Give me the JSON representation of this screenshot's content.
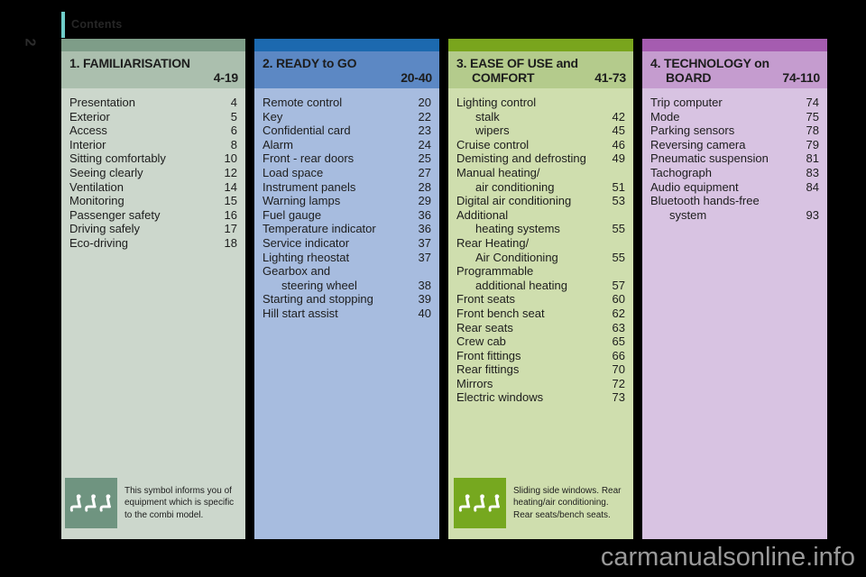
{
  "page": {
    "contents_label": "Contents",
    "page_number": "2",
    "watermark": "carmanualsonline.info"
  },
  "colors": {
    "background": "#000000",
    "contents_bar": "#6fcdc9",
    "watermark_text": "#9a9a9a",
    "col1_accent": "#7e9d88",
    "col1_header": "#abbfae",
    "col1_body": "#ccd7cc",
    "col1_icon": "#6f9480",
    "col2_accent": "#1c69af",
    "col2_header": "#5c88c4",
    "col2_body": "#a7bcdf",
    "col3_accent": "#79a51d",
    "col3_header": "#b4cb8c",
    "col3_body": "#cfdeae",
    "col3_icon": "#76a81f",
    "col4_accent": "#a55cb0",
    "col4_header": "#c59ccf",
    "col4_body": "#d8c3e2"
  },
  "columns": [
    {
      "title_line1": "1. FAMILIARISATION",
      "title_line2": "",
      "page_range": "4-19",
      "rows": [
        {
          "label": "Presentation",
          "page": "4"
        },
        {
          "label": "Exterior",
          "page": "5"
        },
        {
          "label": "Access",
          "page": "6"
        },
        {
          "label": "Interior",
          "page": "8"
        },
        {
          "label": "Sitting comfortably",
          "page": "10"
        },
        {
          "label": "Seeing clearly",
          "page": "12"
        },
        {
          "label": "Ventilation",
          "page": "14"
        },
        {
          "label": "Monitoring",
          "page": "15"
        },
        {
          "label": "Passenger safety",
          "page": "16"
        },
        {
          "label": "Driving safely",
          "page": "17"
        },
        {
          "label": "Eco-driving",
          "page": "18"
        }
      ],
      "note": {
        "icon": "combi-seats-icon",
        "text": "This symbol informs you of equipment which is specific to the combi model."
      }
    },
    {
      "title_line1": "2. READY to GO",
      "title_line2": "",
      "page_range": "20-40",
      "rows": [
        {
          "label": "Remote control",
          "page": "20"
        },
        {
          "label": "Key",
          "page": "22"
        },
        {
          "label": "Confidential card",
          "page": "23"
        },
        {
          "label": "Alarm",
          "page": "24"
        },
        {
          "label": "Front - rear doors",
          "page": "25"
        },
        {
          "label": "Load space",
          "page": "27"
        },
        {
          "label": "Instrument panels",
          "page": "28"
        },
        {
          "label": "Warning lamps",
          "page": "29"
        },
        {
          "label": "Fuel gauge",
          "page": "36"
        },
        {
          "label": "Temperature indicator",
          "page": "36"
        },
        {
          "label": "Service indicator",
          "page": "37"
        },
        {
          "label": "Lighting rheostat",
          "page": "37"
        },
        {
          "label": "Gearbox and",
          "page": ""
        },
        {
          "label": "steering wheel",
          "page": "38",
          "indent": true
        },
        {
          "label": "Starting and stopping",
          "page": "39"
        },
        {
          "label": "Hill start assist",
          "page": "40"
        }
      ]
    },
    {
      "title_line1": "3. EASE OF USE and",
      "title_line2": "COMFORT",
      "page_range": "41-73",
      "rows": [
        {
          "label": "Lighting control",
          "page": ""
        },
        {
          "label": "stalk",
          "page": "42",
          "indent": true
        },
        {
          "label": "wipers",
          "page": "45",
          "indent": true
        },
        {
          "label": "Cruise control",
          "page": "46"
        },
        {
          "label": "Demisting and defrosting",
          "page": "49"
        },
        {
          "label": "Manual heating/",
          "page": ""
        },
        {
          "label": "air conditioning",
          "page": "51",
          "indent": true
        },
        {
          "label": "Digital air conditioning",
          "page": "53"
        },
        {
          "label": "Additional",
          "page": ""
        },
        {
          "label": "heating systems",
          "page": "55",
          "indent": true
        },
        {
          "label": "Rear Heating/",
          "page": ""
        },
        {
          "label": "Air Conditioning",
          "page": "55",
          "indent": true
        },
        {
          "label": "Programmable",
          "page": ""
        },
        {
          "label": "additional heating",
          "page": "57",
          "indent": true
        },
        {
          "label": "Front seats",
          "page": "60"
        },
        {
          "label": "Front bench seat",
          "page": "62"
        },
        {
          "label": "Rear seats",
          "page": "63"
        },
        {
          "label": "Crew cab",
          "page": "65"
        },
        {
          "label": "Front fittings",
          "page": "66"
        },
        {
          "label": "Rear fittings",
          "page": "70"
        },
        {
          "label": "Mirrors",
          "page": "72"
        },
        {
          "label": "Electric windows",
          "page": "73"
        }
      ],
      "note": {
        "icon": "combi-seats-icon",
        "text": "Sliding side windows. Rear heating/air conditioning. Rear seats/bench seats."
      }
    },
    {
      "title_line1": "4. TECHNOLOGY on",
      "title_line2": "BOARD",
      "page_range": "74-110",
      "rows": [
        {
          "label": "Trip computer",
          "page": "74"
        },
        {
          "label": "Mode",
          "page": "75"
        },
        {
          "label": "Parking sensors",
          "page": "78"
        },
        {
          "label": "Reversing camera",
          "page": "79"
        },
        {
          "label": "Pneumatic suspension",
          "page": "81"
        },
        {
          "label": "Tachograph",
          "page": "83"
        },
        {
          "label": "Audio equipment",
          "page": "84"
        },
        {
          "label": "Bluetooth hands-free",
          "page": ""
        },
        {
          "label": "system",
          "page": "93",
          "indent": true
        }
      ]
    }
  ]
}
